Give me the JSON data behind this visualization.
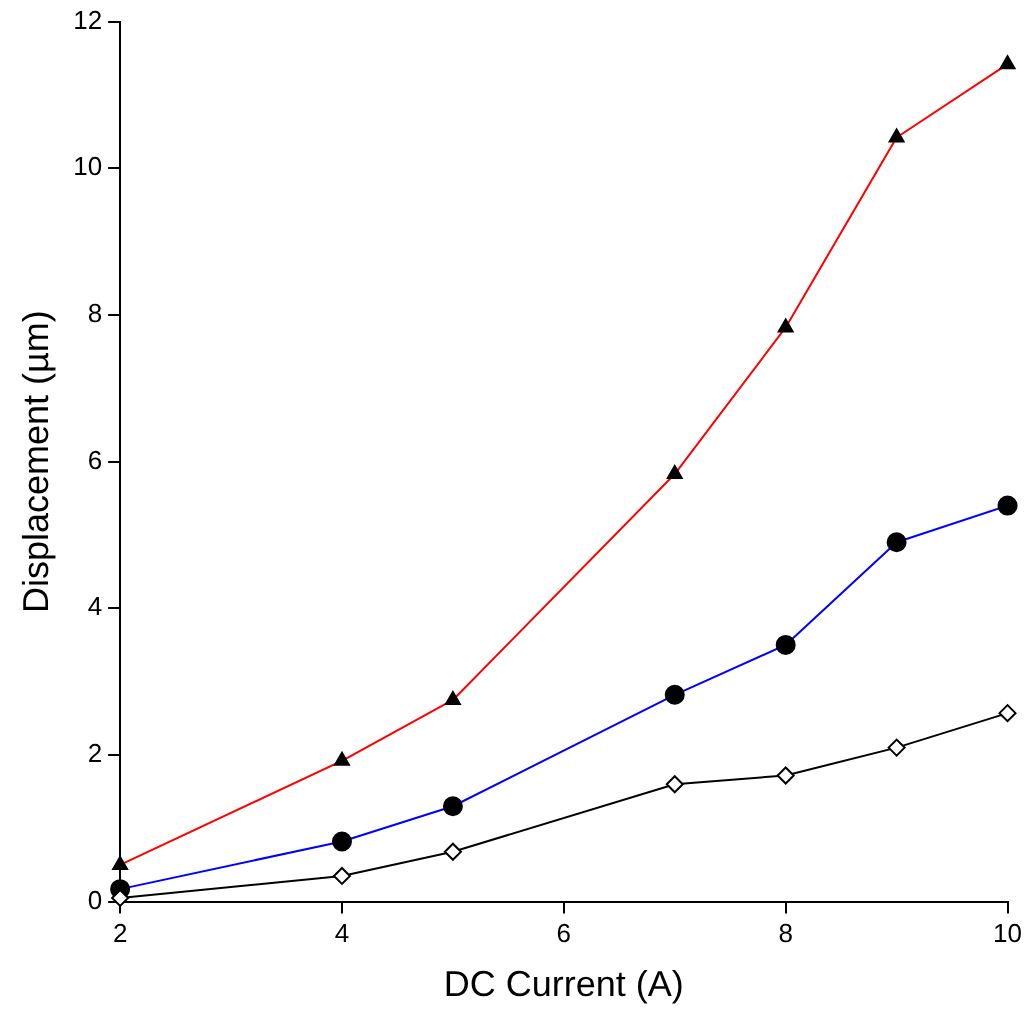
{
  "chart_data": {
    "type": "line",
    "xlabel": "DC Current (A)",
    "ylabel": "Displacement (µm)",
    "x": [
      2,
      4,
      5,
      7,
      8,
      9,
      10
    ],
    "series": [
      {
        "color": "#ff0000",
        "marker": "triangle",
        "values": [
          0.5,
          1.92,
          2.75,
          5.83,
          7.83,
          10.42,
          11.42
        ]
      },
      {
        "color": "#0000ff",
        "marker": "circle",
        "values": [
          0.17,
          0.82,
          1.3,
          2.82,
          3.5,
          4.9,
          5.4
        ]
      },
      {
        "color": "#000000",
        "marker": "diamond",
        "values": [
          0.05,
          0.35,
          0.68,
          1.6,
          1.72,
          2.1,
          2.57
        ]
      }
    ],
    "xlim": [
      2,
      10
    ],
    "xticks": [
      2,
      4,
      6,
      8,
      10
    ],
    "ylim": [
      0,
      12
    ],
    "yticks": [
      0,
      2,
      4,
      6,
      8,
      10,
      12
    ],
    "grid": false,
    "legend": false,
    "line_style": "solid"
  }
}
